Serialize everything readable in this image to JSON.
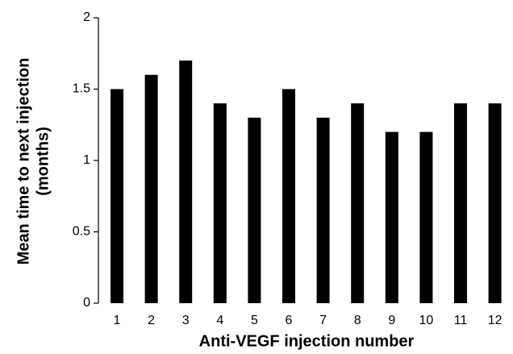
{
  "chart_data": {
    "type": "bar",
    "ylabel": [
      "Mean time to next injection",
      "(months)"
    ],
    "xlabel": "Anti-VEGF injection number",
    "categories": [
      "1",
      "2",
      "3",
      "4",
      "5",
      "6",
      "7",
      "8",
      "9",
      "10",
      "11",
      "12"
    ],
    "values": [
      1.5,
      1.6,
      1.7,
      1.4,
      1.3,
      1.5,
      1.3,
      1.4,
      1.2,
      1.2,
      1.4,
      1.4
    ],
    "color": "#000000",
    "ylim": [
      0,
      2
    ],
    "yticks": [
      0,
      0.5,
      1,
      1.5,
      2
    ],
    "grid": false
  }
}
